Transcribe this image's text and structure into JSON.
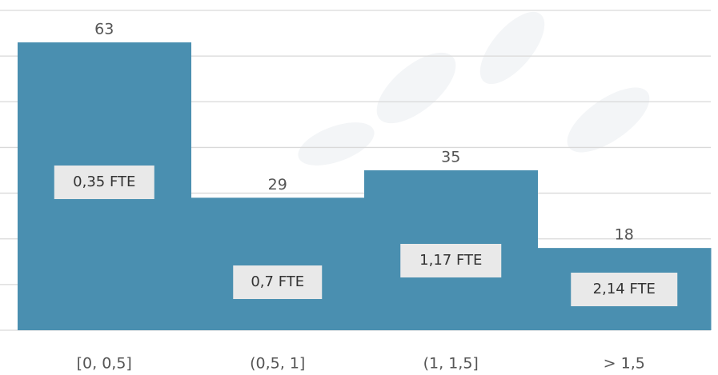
{
  "chart_data": {
    "type": "bar",
    "categories": [
      "[0, 0,5]",
      "(0,5, 1]",
      "(1, 1,5]",
      "> 1,5"
    ],
    "values": [
      63,
      29,
      35,
      18
    ],
    "annotations": [
      "0,35 FTE",
      "0,7 FTE",
      "1,17 FTE",
      "2,14 FTE"
    ],
    "color": "#4a8fb0",
    "ylim": [
      0,
      70
    ],
    "yticks": [
      0,
      10,
      20,
      30,
      40,
      50,
      60,
      70
    ],
    "grid": true
  }
}
